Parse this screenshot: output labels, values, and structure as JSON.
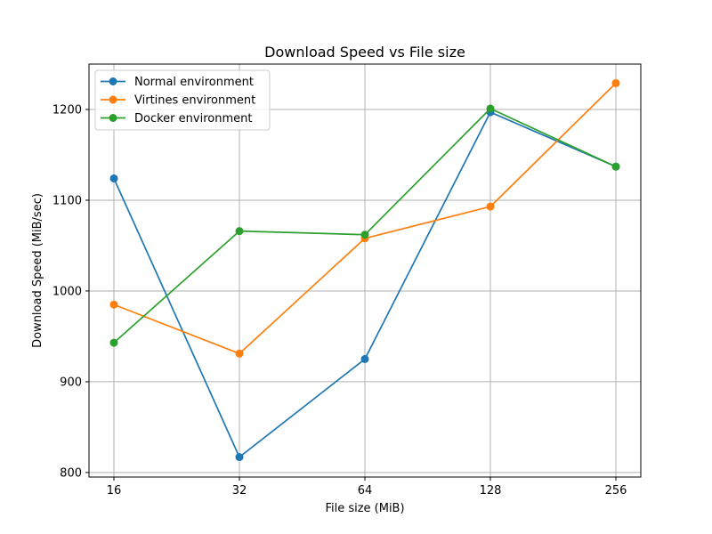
{
  "chart_data": {
    "type": "line",
    "title": "Download Speed vs File size",
    "xlabel": "File size (MiB)",
    "ylabel": "Download Speed (MiB/sec)",
    "x_scale": "log2",
    "categories": [
      "16",
      "32",
      "64",
      "128",
      "256"
    ],
    "x": [
      16,
      32,
      64,
      128,
      256
    ],
    "ylim": [
      795,
      1250
    ],
    "yticks": [
      800,
      900,
      1000,
      1100,
      1200
    ],
    "grid": true,
    "legend_position": "top-left",
    "series": [
      {
        "name": "Normal environment",
        "color": "#1f77b4",
        "values": [
          1124,
          817,
          925,
          1197,
          1137
        ]
      },
      {
        "name": "Virtines environment",
        "color": "#ff7f0e",
        "values": [
          985,
          931,
          1058,
          1093,
          1229
        ]
      },
      {
        "name": "Docker environment",
        "color": "#2ca02c",
        "values": [
          943,
          1066,
          1062,
          1201,
          1137
        ]
      }
    ]
  }
}
